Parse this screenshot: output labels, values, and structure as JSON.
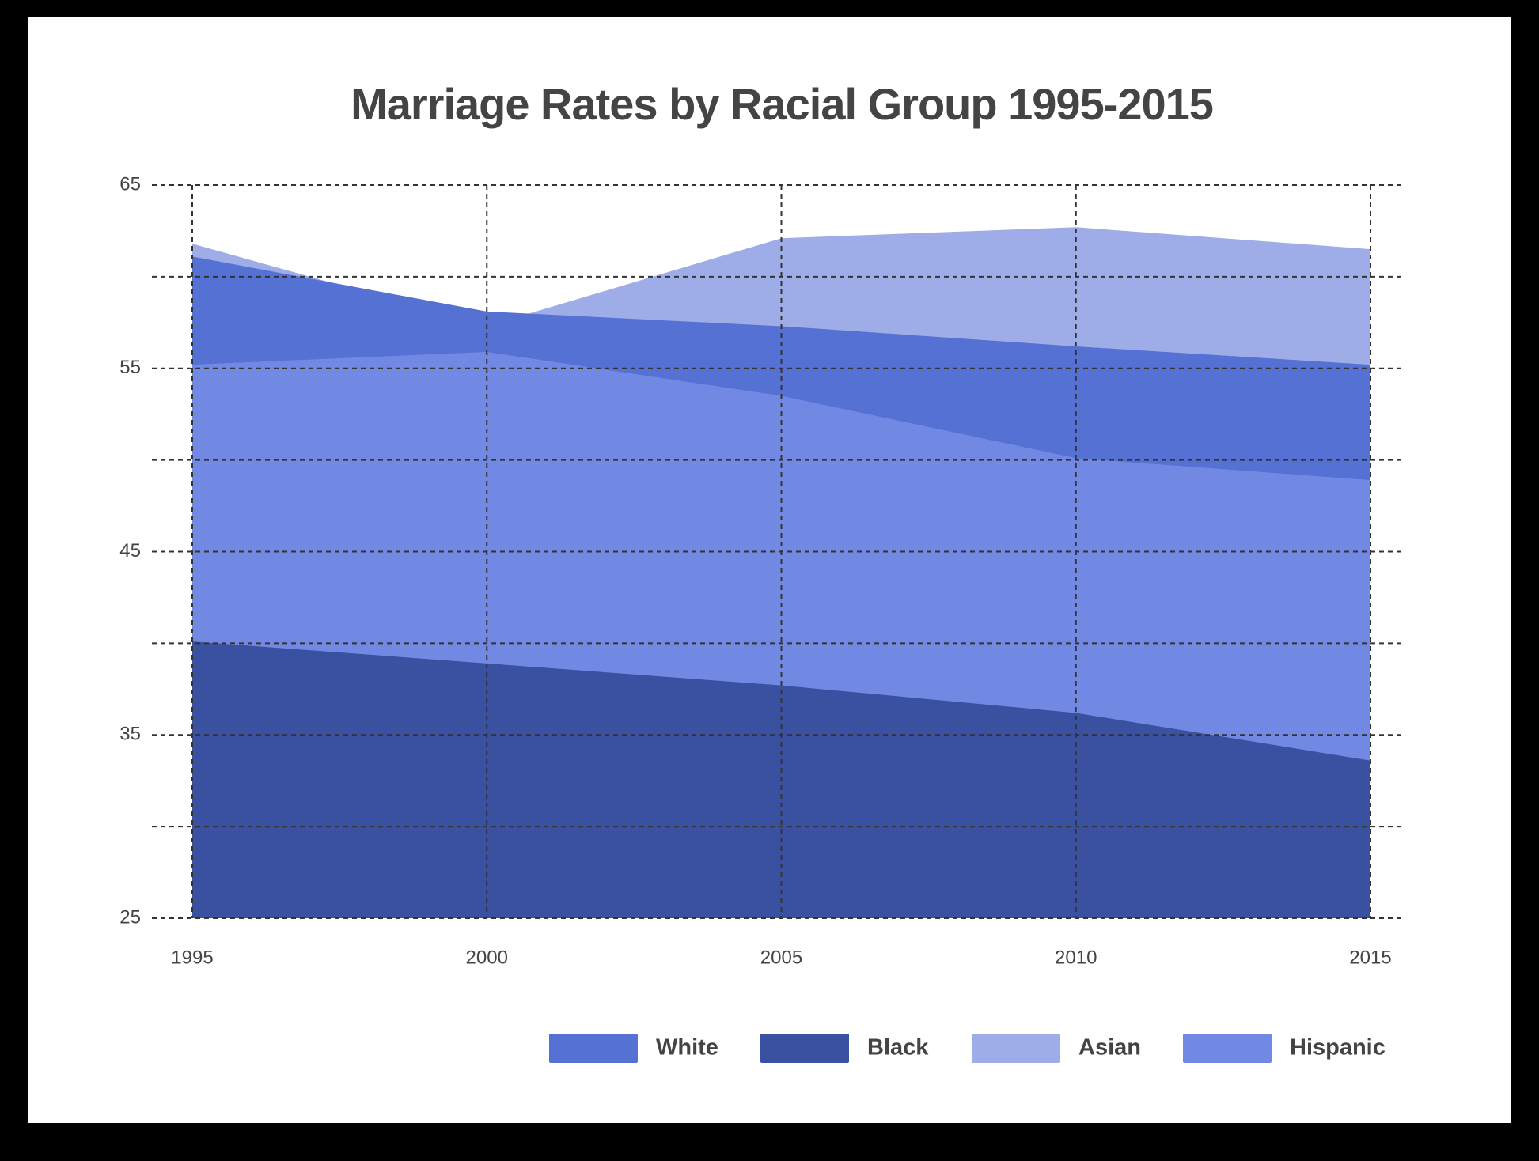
{
  "chart_data": {
    "type": "area",
    "title": "Marriage Rates by Racial Group 1995-2015",
    "x": [
      1995,
      2000,
      2005,
      2010,
      2015
    ],
    "xlim": [
      1995,
      2015
    ],
    "xticks": [
      1995,
      2000,
      2005,
      2010,
      2015
    ],
    "ylim": [
      25,
      65
    ],
    "yticks": [
      25,
      35,
      45,
      55,
      65
    ],
    "minor_yticks": [
      30,
      40,
      50,
      60
    ],
    "grid": true,
    "legend": "bottom-right",
    "series": [
      {
        "name": "White",
        "color": "#5571d4",
        "values": [
          61.1,
          58.1,
          57.3,
          56.2,
          55.2
        ]
      },
      {
        "name": "Black",
        "color": "#3a50a0",
        "values": [
          40.1,
          38.9,
          37.7,
          36.2,
          33.6
        ]
      },
      {
        "name": "Asian",
        "color": "#9eade7",
        "values": [
          61.8,
          57.3,
          62.1,
          62.7,
          61.5
        ]
      },
      {
        "name": "Hispanic",
        "color": "#7189e3",
        "values": [
          55.2,
          55.9,
          53.5,
          50.1,
          48.9
        ]
      }
    ]
  }
}
